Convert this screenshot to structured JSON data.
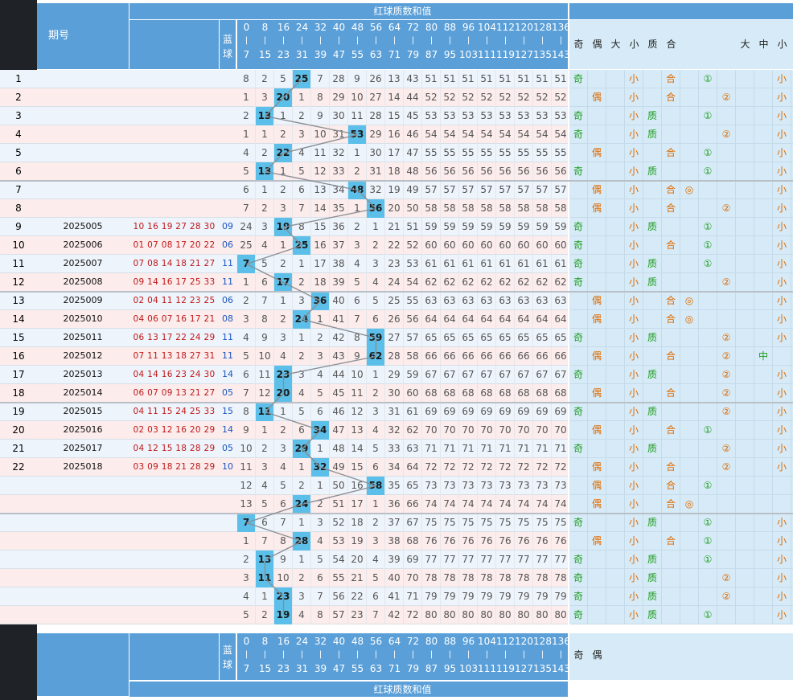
{
  "header": {
    "issue_label": "期号",
    "blue_label": "蓝球",
    "section_title": "红球质数和值",
    "columns": [
      {
        "top": "0",
        "bot": "7"
      },
      {
        "top": "8",
        "bot": "15"
      },
      {
        "top": "16",
        "bot": "23"
      },
      {
        "top": "24",
        "bot": "31"
      },
      {
        "top": "32",
        "bot": "39"
      },
      {
        "top": "40",
        "bot": "47"
      },
      {
        "top": "48",
        "bot": "55"
      },
      {
        "top": "56",
        "bot": "63"
      },
      {
        "top": "64",
        "bot": "71"
      },
      {
        "top": "72",
        "bot": "79"
      },
      {
        "top": "80",
        "bot": "87"
      },
      {
        "top": "88",
        "bot": "95"
      },
      {
        "top": "96",
        "bot": "103"
      },
      {
        "top": "104",
        "bot": "111"
      },
      {
        "top": "112",
        "bot": "119"
      },
      {
        "top": "120",
        "bot": "127"
      },
      {
        "top": "128",
        "bot": "135"
      },
      {
        "top": "136",
        "bot": "143"
      }
    ],
    "attr_headers": [
      "奇",
      "偶",
      "大",
      "小",
      "质",
      "合",
      "",
      "",
      "",
      "大",
      "中",
      "小"
    ]
  },
  "colors": {
    "band": "#5a9fd8",
    "hit": "#5bbfe9",
    "odd_row": "#eef4fb",
    "even_row": "#fcecec",
    "attr_bg": "#d6ebf7",
    "line": "#8a8f95"
  },
  "rows": [
    {
      "idx": "1",
      "issue": "",
      "reds": "",
      "blue": "",
      "hit": 3,
      "nums": [
        8,
        2,
        5,
        25,
        7,
        28,
        9,
        26,
        13,
        43,
        51,
        51,
        51,
        51,
        51,
        51,
        51,
        51
      ],
      "attrs": [
        "奇",
        "",
        "",
        "小",
        "",
        "合",
        "",
        "①",
        "",
        "",
        "",
        "小"
      ]
    },
    {
      "idx": "2",
      "issue": "",
      "reds": "",
      "blue": "",
      "hit": 2,
      "nums": [
        1,
        3,
        20,
        1,
        8,
        29,
        10,
        27,
        14,
        44,
        52,
        52,
        52,
        52,
        52,
        52,
        52,
        52
      ],
      "attrs": [
        "",
        "偶",
        "",
        "小",
        "",
        "合",
        "",
        "",
        "②",
        "",
        "",
        "小"
      ]
    },
    {
      "idx": "3",
      "issue": "",
      "reds": "",
      "blue": "",
      "hit": 1,
      "nums": [
        2,
        13,
        1,
        2,
        9,
        30,
        11,
        28,
        15,
        45,
        53,
        53,
        53,
        53,
        53,
        53,
        53,
        53
      ],
      "attrs": [
        "奇",
        "",
        "",
        "小",
        "质",
        "",
        "",
        "①",
        "",
        "",
        "",
        "小"
      ]
    },
    {
      "idx": "4",
      "issue": "",
      "reds": "",
      "blue": "",
      "hit": 6,
      "nums": [
        1,
        1,
        2,
        3,
        10,
        31,
        53,
        29,
        16,
        46,
        54,
        54,
        54,
        54,
        54,
        54,
        54,
        54
      ],
      "attrs": [
        "奇",
        "",
        "",
        "小",
        "质",
        "",
        "",
        "",
        "②",
        "",
        "",
        "小"
      ]
    },
    {
      "idx": "5",
      "issue": "",
      "reds": "",
      "blue": "",
      "hit": 2,
      "nums": [
        4,
        2,
        22,
        4,
        11,
        32,
        1,
        30,
        17,
        47,
        55,
        55,
        55,
        55,
        55,
        55,
        55,
        55
      ],
      "attrs": [
        "",
        "偶",
        "",
        "小",
        "",
        "合",
        "",
        "①",
        "",
        "",
        "",
        "小"
      ]
    },
    {
      "idx": "6",
      "issue": "",
      "reds": "",
      "blue": "",
      "hit": 1,
      "nums": [
        5,
        13,
        1,
        5,
        12,
        33,
        2,
        31,
        18,
        48,
        56,
        56,
        56,
        56,
        56,
        56,
        56,
        56
      ],
      "attrs": [
        "奇",
        "",
        "",
        "小",
        "质",
        "",
        "",
        "①",
        "",
        "",
        "",
        "小"
      ]
    },
    {
      "idx": "7",
      "issue": "",
      "reds": "",
      "blue": "",
      "hit": 6,
      "nums": [
        6,
        1,
        2,
        6,
        13,
        34,
        48,
        32,
        19,
        49,
        57,
        57,
        57,
        57,
        57,
        57,
        57,
        57
      ],
      "attrs": [
        "",
        "偶",
        "",
        "小",
        "",
        "合",
        "◎",
        "",
        "",
        "",
        "",
        "小"
      ]
    },
    {
      "idx": "8",
      "issue": "",
      "reds": "",
      "blue": "",
      "hit": 7,
      "nums": [
        7,
        2,
        3,
        7,
        14,
        35,
        1,
        56,
        20,
        50,
        58,
        58,
        58,
        58,
        58,
        58,
        58,
        58
      ],
      "attrs": [
        "",
        "偶",
        "",
        "小",
        "",
        "合",
        "",
        "",
        "②",
        "",
        "",
        "小"
      ]
    },
    {
      "idx": "9",
      "issue": "2025005",
      "reds": "10 16 19 27 28 30",
      "blue": "09",
      "hit": 2,
      "nums": [
        24,
        3,
        19,
        8,
        15,
        36,
        2,
        1,
        21,
        51,
        59,
        59,
        59,
        59,
        59,
        59,
        59,
        59
      ],
      "attrs": [
        "奇",
        "",
        "",
        "小",
        "质",
        "",
        "",
        "①",
        "",
        "",
        "",
        "小"
      ]
    },
    {
      "idx": "10",
      "issue": "2025006",
      "reds": "01 07 08 17 20 22",
      "blue": "06",
      "hit": 3,
      "nums": [
        25,
        4,
        1,
        25,
        16,
        37,
        3,
        2,
        22,
        52,
        60,
        60,
        60,
        60,
        60,
        60,
        60,
        60
      ],
      "attrs": [
        "奇",
        "",
        "",
        "小",
        "",
        "合",
        "",
        "①",
        "",
        "",
        "",
        "小"
      ]
    },
    {
      "idx": "11",
      "issue": "2025007",
      "reds": "07 08 14 18 21 27",
      "blue": "11",
      "hit": 0,
      "nums": [
        7,
        5,
        2,
        1,
        17,
        38,
        4,
        3,
        23,
        53,
        61,
        61,
        61,
        61,
        61,
        61,
        61,
        61
      ],
      "attrs": [
        "奇",
        "",
        "",
        "小",
        "质",
        "",
        "",
        "①",
        "",
        "",
        "",
        "小"
      ]
    },
    {
      "idx": "12",
      "issue": "2025008",
      "reds": "09 14 16 17 25 33",
      "blue": "11",
      "hit": 2,
      "nums": [
        1,
        6,
        17,
        2,
        18,
        39,
        5,
        4,
        24,
        54,
        62,
        62,
        62,
        62,
        62,
        62,
        62,
        62
      ],
      "attrs": [
        "奇",
        "",
        "",
        "小",
        "质",
        "",
        "",
        "",
        "②",
        "",
        "",
        "小"
      ]
    },
    {
      "idx": "13",
      "issue": "2025009",
      "reds": "02 04 11 12 23 25",
      "blue": "06",
      "hit": 4,
      "nums": [
        2,
        7,
        1,
        3,
        36,
        40,
        6,
        5,
        25,
        55,
        63,
        63,
        63,
        63,
        63,
        63,
        63,
        63
      ],
      "attrs": [
        "",
        "偶",
        "",
        "小",
        "",
        "合",
        "◎",
        "",
        "",
        "",
        "",
        "小"
      ]
    },
    {
      "idx": "14",
      "issue": "2025010",
      "reds": "04 06 07 16 17 21",
      "blue": "08",
      "hit": 3,
      "nums": [
        3,
        8,
        2,
        24,
        1,
        41,
        7,
        6,
        26,
        56,
        64,
        64,
        64,
        64,
        64,
        64,
        64,
        64
      ],
      "attrs": [
        "",
        "偶",
        "",
        "小",
        "",
        "合",
        "◎",
        "",
        "",
        "",
        "",
        "小"
      ]
    },
    {
      "idx": "15",
      "issue": "2025011",
      "reds": "06 13 17 22 24 29",
      "blue": "11",
      "hit": 7,
      "nums": [
        4,
        9,
        3,
        1,
        2,
        42,
        8,
        59,
        27,
        57,
        65,
        65,
        65,
        65,
        65,
        65,
        65,
        65
      ],
      "attrs": [
        "奇",
        "",
        "",
        "小",
        "质",
        "",
        "",
        "",
        "②",
        "",
        "",
        "小"
      ]
    },
    {
      "idx": "16",
      "issue": "2025012",
      "reds": "07 11 13 18 27 31",
      "blue": "11",
      "hit": 7,
      "nums": [
        5,
        10,
        4,
        2,
        3,
        43,
        9,
        62,
        28,
        58,
        66,
        66,
        66,
        66,
        66,
        66,
        66,
        66
      ],
      "attrs": [
        "",
        "偶",
        "",
        "小",
        "",
        "合",
        "",
        "",
        "②",
        "",
        "中",
        ""
      ]
    },
    {
      "idx": "17",
      "issue": "2025013",
      "reds": "04 14 16 23 24 30",
      "blue": "14",
      "hit": 2,
      "nums": [
        6,
        11,
        23,
        3,
        4,
        44,
        10,
        1,
        29,
        59,
        67,
        67,
        67,
        67,
        67,
        67,
        67,
        67
      ],
      "attrs": [
        "奇",
        "",
        "",
        "小",
        "质",
        "",
        "",
        "",
        "②",
        "",
        "",
        "小"
      ]
    },
    {
      "idx": "18",
      "issue": "2025014",
      "reds": "06 07 09 13 21 27",
      "blue": "05",
      "hit": 2,
      "nums": [
        7,
        12,
        20,
        4,
        5,
        45,
        11,
        2,
        30,
        60,
        68,
        68,
        68,
        68,
        68,
        68,
        68,
        68
      ],
      "attrs": [
        "",
        "偶",
        "",
        "小",
        "",
        "合",
        "",
        "",
        "②",
        "",
        "",
        "小"
      ]
    },
    {
      "idx": "19",
      "issue": "2025015",
      "reds": "04 11 15 24 25 33",
      "blue": "15",
      "hit": 1,
      "nums": [
        8,
        11,
        1,
        5,
        6,
        46,
        12,
        3,
        31,
        61,
        69,
        69,
        69,
        69,
        69,
        69,
        69,
        69
      ],
      "attrs": [
        "奇",
        "",
        "",
        "小",
        "质",
        "",
        "",
        "",
        "②",
        "",
        "",
        "小"
      ]
    },
    {
      "idx": "20",
      "issue": "2025016",
      "reds": "02 03 12 16 20 29",
      "blue": "14",
      "hit": 4,
      "nums": [
        9,
        1,
        2,
        6,
        34,
        47,
        13,
        4,
        32,
        62,
        70,
        70,
        70,
        70,
        70,
        70,
        70,
        70
      ],
      "attrs": [
        "",
        "偶",
        "",
        "小",
        "",
        "合",
        "",
        "①",
        "",
        "",
        "",
        "小"
      ]
    },
    {
      "idx": "21",
      "issue": "2025017",
      "reds": "04 12 15 18 28 29",
      "blue": "05",
      "hit": 3,
      "nums": [
        10,
        2,
        3,
        29,
        1,
        48,
        14,
        5,
        33,
        63,
        71,
        71,
        71,
        71,
        71,
        71,
        71,
        71
      ],
      "attrs": [
        "奇",
        "",
        "",
        "小",
        "质",
        "",
        "",
        "",
        "②",
        "",
        "",
        "小"
      ]
    },
    {
      "idx": "22",
      "issue": "2025018",
      "reds": "03 09 18 21 28 29",
      "blue": "10",
      "hit": 4,
      "nums": [
        11,
        3,
        4,
        1,
        32,
        49,
        15,
        6,
        34,
        64,
        72,
        72,
        72,
        72,
        72,
        72,
        72,
        72
      ],
      "attrs": [
        "",
        "偶",
        "",
        "小",
        "",
        "合",
        "",
        "",
        "②",
        "",
        "",
        "小"
      ]
    },
    {
      "idx": "",
      "issue": "",
      "reds": "",
      "blue": "",
      "hit": 7,
      "nums": [
        12,
        4,
        5,
        2,
        1,
        50,
        16,
        58,
        35,
        65,
        73,
        73,
        73,
        73,
        73,
        73,
        73,
        73
      ],
      "attrs": [
        "",
        "偶",
        "",
        "小",
        "",
        "合",
        "",
        "①",
        "",
        "",
        "",
        ""
      ]
    },
    {
      "idx": "",
      "issue": "",
      "reds": "",
      "blue": "",
      "hit": 3,
      "nums": [
        13,
        5,
        6,
        24,
        2,
        51,
        17,
        1,
        36,
        66,
        74,
        74,
        74,
        74,
        74,
        74,
        74,
        74
      ],
      "attrs": [
        "",
        "偶",
        "",
        "小",
        "",
        "合",
        "◎",
        "",
        "",
        "",
        "",
        ""
      ]
    },
    {
      "idx": "",
      "issue": "",
      "reds": "",
      "blue": "",
      "hit": 0,
      "nums": [
        7,
        6,
        7,
        1,
        3,
        52,
        18,
        2,
        37,
        67,
        75,
        75,
        75,
        75,
        75,
        75,
        75,
        75
      ],
      "attrs": [
        "奇",
        "",
        "",
        "小",
        "质",
        "",
        "",
        "①",
        "",
        "",
        "",
        "小"
      ]
    },
    {
      "idx": "",
      "issue": "",
      "reds": "",
      "blue": "",
      "hit": 3,
      "nums": [
        1,
        7,
        8,
        28,
        4,
        53,
        19,
        3,
        38,
        68,
        76,
        76,
        76,
        76,
        76,
        76,
        76,
        76
      ],
      "attrs": [
        "",
        "偶",
        "",
        "小",
        "",
        "合",
        "",
        "①",
        "",
        "",
        "",
        "小"
      ]
    },
    {
      "idx": "",
      "issue": "",
      "reds": "",
      "blue": "",
      "hit": 1,
      "nums": [
        2,
        13,
        9,
        1,
        5,
        54,
        20,
        4,
        39,
        69,
        77,
        77,
        77,
        77,
        77,
        77,
        77,
        77
      ],
      "attrs": [
        "奇",
        "",
        "",
        "小",
        "质",
        "",
        "",
        "①",
        "",
        "",
        "",
        "小"
      ]
    },
    {
      "idx": "",
      "issue": "",
      "reds": "",
      "blue": "",
      "hit": 1,
      "nums": [
        3,
        11,
        10,
        2,
        6,
        55,
        21,
        5,
        40,
        70,
        78,
        78,
        78,
        78,
        78,
        78,
        78,
        78
      ],
      "attrs": [
        "奇",
        "",
        "",
        "小",
        "质",
        "",
        "",
        "",
        "②",
        "",
        "",
        "小"
      ]
    },
    {
      "idx": "",
      "issue": "",
      "reds": "",
      "blue": "",
      "hit": 2,
      "nums": [
        4,
        1,
        23,
        3,
        7,
        56,
        22,
        6,
        41,
        71,
        79,
        79,
        79,
        79,
        79,
        79,
        79,
        79
      ],
      "attrs": [
        "奇",
        "",
        "",
        "小",
        "质",
        "",
        "",
        "",
        "②",
        "",
        "",
        "小"
      ]
    },
    {
      "idx": "",
      "issue": "",
      "reds": "",
      "blue": "",
      "hit": 2,
      "nums": [
        5,
        2,
        19,
        4,
        8,
        57,
        23,
        7,
        42,
        72,
        80,
        80,
        80,
        80,
        80,
        80,
        80,
        80
      ],
      "attrs": [
        "奇",
        "",
        "",
        "小",
        "质",
        "",
        "",
        "①",
        "",
        "",
        "",
        "小"
      ]
    }
  ],
  "footer": {
    "attr_headers": [
      "奇",
      "偶",
      "",
      "",
      "",
      "",
      "",
      "",
      "",
      "",
      "",
      ""
    ]
  }
}
